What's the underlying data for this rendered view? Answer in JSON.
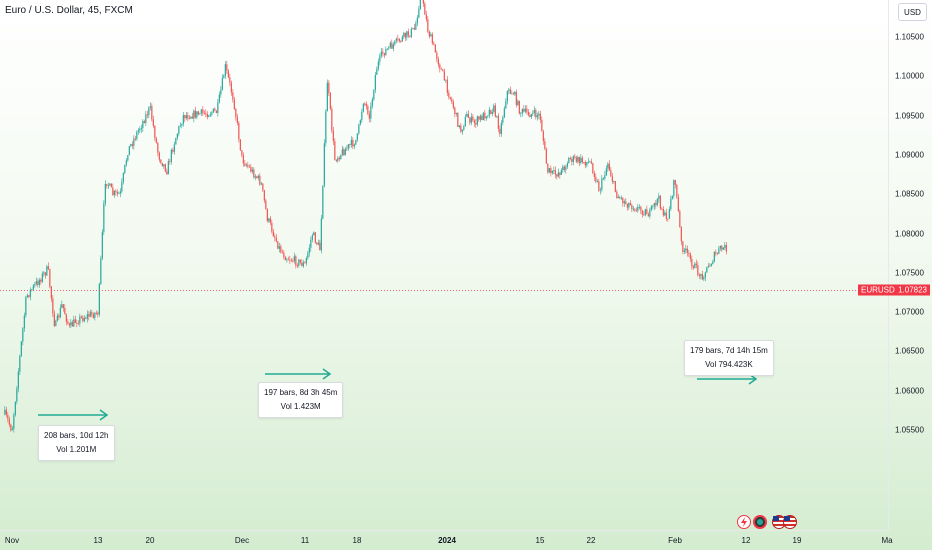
{
  "header": {
    "title": "Euro / U.S. Dollar, 45, FXCM",
    "currency_button": "USD"
  },
  "price_tag": {
    "symbol": "EURUSD",
    "value": "1.07823"
  },
  "measurements": [
    {
      "line1": "208 bars, 10d 12h",
      "line2": "Vol 1.201M"
    },
    {
      "line1": "197 bars, 8d 3h 45m",
      "line2": "Vol 1.423M"
    },
    {
      "line1": "179 bars, 7d 14h 15m",
      "line2": "Vol 794.423K"
    }
  ],
  "icons": [
    "lightning-icon",
    "record-icon",
    "flag-icon"
  ],
  "colors": {
    "up": "#26a69a",
    "down": "#ef5350",
    "arrow": "#22ab94",
    "price_line": "#f23645"
  },
  "chart_data": {
    "type": "candlestick",
    "title": "Euro / U.S. Dollar, 45, FXCM",
    "xlabel": "",
    "ylabel": "USD",
    "y_ticks": [
      "1.10500",
      "1.10000",
      "1.09500",
      "1.09000",
      "1.08500",
      "1.08000",
      "1.07500",
      "1.07000",
      "1.06500",
      "1.06000",
      "1.05500"
    ],
    "x_ticks": [
      "Nov",
      "13",
      "20",
      "Dec",
      "11",
      "18",
      "2024",
      "15",
      "22",
      "Feb",
      "12",
      "19",
      "Ma"
    ],
    "ylim": [
      1.0525,
      1.1095
    ],
    "last_price": 1.07823,
    "price_path": [
      [
        "2023-10-31",
        1.057
      ],
      [
        "2023-11-01",
        1.055
      ],
      [
        "2023-11-02",
        1.0635
      ],
      [
        "2023-11-03",
        1.072
      ],
      [
        "2023-11-06",
        1.0755
      ],
      [
        "2023-11-07",
        1.068
      ],
      [
        "2023-11-08",
        1.071
      ],
      [
        "2023-11-09",
        1.068
      ],
      [
        "2023-11-10",
        1.069
      ],
      [
        "2023-11-13",
        1.07
      ],
      [
        "2023-11-14",
        1.087
      ],
      [
        "2023-11-15",
        1.085
      ],
      [
        "2023-11-16",
        1.085
      ],
      [
        "2023-11-17",
        1.0905
      ],
      [
        "2023-11-20",
        1.096
      ],
      [
        "2023-11-21",
        1.09
      ],
      [
        "2023-11-22",
        1.088
      ],
      [
        "2023-11-23",
        1.092
      ],
      [
        "2023-11-24",
        1.095
      ],
      [
        "2023-11-28",
        1.0955
      ],
      [
        "2023-11-29",
        1.1012
      ],
      [
        "2023-11-30",
        1.097
      ],
      [
        "2023-12-01",
        1.0895
      ],
      [
        "2023-12-04",
        1.0865
      ],
      [
        "2023-12-05",
        1.082
      ],
      [
        "2023-12-06",
        1.08
      ],
      [
        "2023-12-07",
        1.078
      ],
      [
        "2023-12-08",
        1.077
      ],
      [
        "2023-12-11",
        1.076
      ],
      [
        "2023-12-12",
        1.08
      ],
      [
        "2023-12-13",
        1.078
      ],
      [
        "2023-12-14",
        1.0995
      ],
      [
        "2023-12-15",
        1.0895
      ],
      [
        "2023-12-18",
        1.092
      ],
      [
        "2023-12-19",
        1.097
      ],
      [
        "2023-12-20",
        1.095
      ],
      [
        "2023-12-21",
        1.101
      ],
      [
        "2023-12-22",
        1.103
      ],
      [
        "2023-12-27",
        1.106
      ],
      [
        "2023-12-28",
        1.111
      ],
      [
        "2023-12-29",
        1.106
      ],
      [
        "2024-01-02",
        1.096
      ],
      [
        "2024-01-03",
        1.093
      ],
      [
        "2024-01-04",
        1.095
      ],
      [
        "2024-01-05",
        1.094
      ],
      [
        "2024-01-08",
        1.096
      ],
      [
        "2024-01-09",
        1.093
      ],
      [
        "2024-01-10",
        1.098
      ],
      [
        "2024-01-11",
        1.098
      ],
      [
        "2024-01-12",
        1.0955
      ],
      [
        "2024-01-15",
        1.095
      ],
      [
        "2024-01-16",
        1.088
      ],
      [
        "2024-01-17",
        1.0875
      ],
      [
        "2024-01-18",
        1.088
      ],
      [
        "2024-01-19",
        1.0895
      ],
      [
        "2024-01-22",
        1.089
      ],
      [
        "2024-01-23",
        1.0855
      ],
      [
        "2024-01-24",
        1.089
      ],
      [
        "2024-01-25",
        1.085
      ],
      [
        "2024-01-26",
        1.084
      ],
      [
        "2024-01-29",
        1.0825
      ],
      [
        "2024-01-30",
        1.0845
      ],
      [
        "2024-01-31",
        1.0815
      ],
      [
        "2024-02-01",
        1.087
      ],
      [
        "2024-02-02",
        1.0785
      ],
      [
        "2024-02-05",
        1.0745
      ],
      [
        "2024-02-06",
        1.0755
      ],
      [
        "2024-02-07",
        1.077
      ],
      [
        "2024-02-08",
        1.078
      ],
      [
        "2024-02-09",
        1.0782
      ]
    ]
  }
}
